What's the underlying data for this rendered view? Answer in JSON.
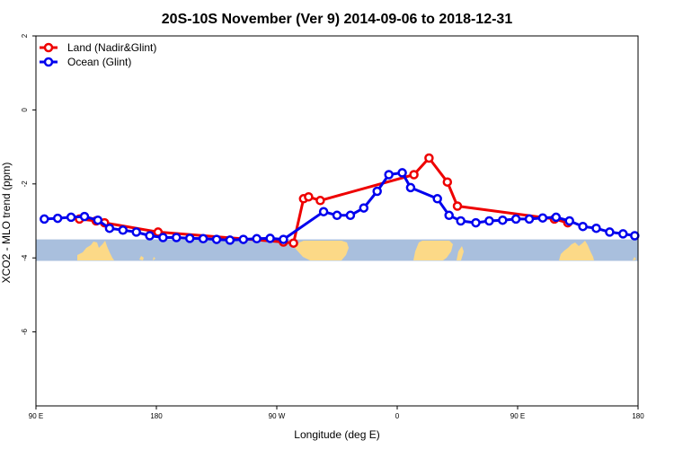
{
  "chart_data": {
    "type": "line",
    "title": "20S-10S November (Ver 9)   2014-09-06 to 2018-12-31",
    "xlabel": "Longitude (deg E)",
    "ylabel": "XCO2 - MLO trend (ppm)",
    "xlim": [
      90,
      450
    ],
    "ylim": [
      -8,
      2
    ],
    "x_ticks": [
      {
        "value": 90,
        "label": "90 E"
      },
      {
        "value": 162,
        "label": "180"
      },
      {
        "value": 234,
        "label": "90 W"
      },
      {
        "value": 306,
        "label": "0"
      },
      {
        "value": 378,
        "label": "90 E"
      },
      {
        "value": 450,
        "label": "180"
      }
    ],
    "y_ticks": [
      {
        "value": 2,
        "label": "2"
      },
      {
        "value": 0,
        "label": "0"
      },
      {
        "value": -2,
        "label": "-2"
      },
      {
        "value": -4,
        "label": "-4"
      },
      {
        "value": -6,
        "label": "-6"
      }
    ],
    "grid": false,
    "legend_position": "top-left",
    "land_band": {
      "y_top": -3.5,
      "y_bottom": -4.08,
      "ocean_color": "#a9bfdd",
      "land_color": "#fcd987"
    },
    "series": [
      {
        "name": "Land (Nadir&Glint)",
        "color": "#ee0000",
        "x": [
          116,
          126,
          131,
          163,
          238,
          244,
          250,
          253,
          260,
          316,
          325,
          336,
          342,
          400,
          408
        ],
        "y": [
          -2.95,
          -3.0,
          -3.05,
          -3.3,
          -3.57,
          -3.6,
          -2.4,
          -2.35,
          -2.45,
          -1.75,
          -1.3,
          -1.95,
          -2.6,
          -2.95,
          -3.05
        ]
      },
      {
        "name": "Ocean (Glint)",
        "color": "#0000ee",
        "x": [
          95,
          103,
          111,
          119,
          127,
          134,
          142,
          150,
          158,
          166,
          174,
          182,
          190,
          198,
          206,
          214,
          222,
          230,
          238,
          262,
          270,
          278,
          286,
          294,
          301,
          309,
          314,
          330,
          337,
          344,
          353,
          361,
          369,
          377,
          385,
          393,
          401,
          409,
          417,
          425,
          433,
          441,
          448
        ],
        "y": [
          -2.95,
          -2.93,
          -2.9,
          -2.88,
          -2.98,
          -3.2,
          -3.25,
          -3.3,
          -3.4,
          -3.45,
          -3.45,
          -3.47,
          -3.48,
          -3.5,
          -3.52,
          -3.5,
          -3.48,
          -3.47,
          -3.5,
          -2.75,
          -2.85,
          -2.85,
          -2.65,
          -2.2,
          -1.75,
          -1.7,
          -2.1,
          -2.4,
          -2.85,
          -3.0,
          -3.05,
          -3.0,
          -2.98,
          -2.95,
          -2.95,
          -2.92,
          -2.9,
          -3.0,
          -3.15,
          -3.2,
          -3.3,
          -3.35,
          -3.4
        ]
      }
    ]
  }
}
